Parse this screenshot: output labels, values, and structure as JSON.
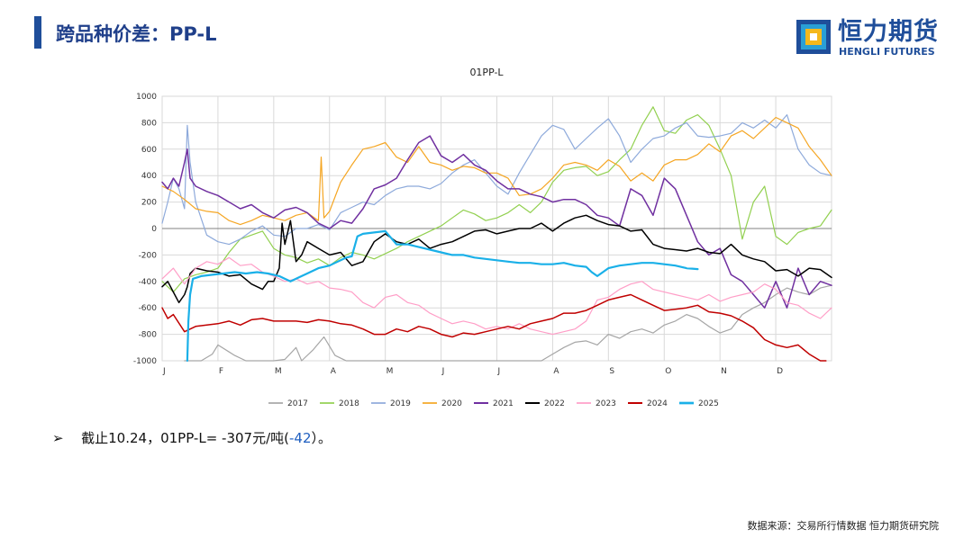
{
  "header": {
    "title": "跨品种价差：PP-L",
    "logo_cn": "恒力期货",
    "logo_en": "HENGLI FUTURES",
    "accent_color": "#1f4e9a"
  },
  "note": {
    "bullet": "➢",
    "prefix": "截止10.24，01PP-L= -307元/吨(",
    "change": "-42",
    "suffix": "）。"
  },
  "source": "数据来源：交易所行情数据  恒力期货研究院",
  "chart_data": {
    "type": "line",
    "title": "01PP-L",
    "xlabel": "",
    "ylabel": "",
    "ylim": [
      -1000,
      1000
    ],
    "yticks": [
      -1000,
      -800,
      -600,
      -400,
      -200,
      0,
      200,
      400,
      600,
      800,
      1000
    ],
    "xlim": [
      0,
      12
    ],
    "xticks": [
      {
        "label": "J",
        "x": 0
      },
      {
        "label": "F",
        "x": 1
      },
      {
        "label": "M",
        "x": 2
      },
      {
        "label": "A",
        "x": 3
      },
      {
        "label": "M",
        "x": 4
      },
      {
        "label": "J",
        "x": 5
      },
      {
        "label": "J",
        "x": 6
      },
      {
        "label": "A",
        "x": 7
      },
      {
        "label": "S",
        "x": 8
      },
      {
        "label": "O",
        "x": 9
      },
      {
        "label": "N",
        "x": 10
      },
      {
        "label": "D",
        "x": 11
      }
    ],
    "grid": true,
    "legend_position": "bottom",
    "series": [
      {
        "name": "2017",
        "color": "#a6a6a6",
        "width": 1.2,
        "x": [
          0.4,
          0.5,
          0.7,
          0.9,
          1.0,
          1.3,
          1.5,
          1.8,
          2.0,
          2.2,
          2.4,
          2.5,
          2.7,
          2.9,
          3.1,
          3.3,
          3.5,
          3.7,
          3.9,
          4.1,
          4.3,
          4.5,
          4.7,
          5.0,
          5.2,
          5.4,
          5.6,
          5.8,
          6.0,
          6.2,
          6.4,
          6.6,
          6.8,
          7.0,
          7.2,
          7.4,
          7.6,
          7.8,
          8.0,
          8.2,
          8.4,
          8.6,
          8.8,
          9.0,
          9.2,
          9.4,
          9.6,
          9.8,
          10.0,
          10.2,
          10.4,
          10.6,
          10.8,
          11.0,
          11.2,
          11.4,
          11.6,
          11.8,
          12.0
        ],
        "y": [
          -1000,
          -1000,
          -1000,
          -950,
          -880,
          -960,
          -1000,
          -1000,
          -1000,
          -990,
          -900,
          -1000,
          -920,
          -820,
          -960,
          -1000,
          -1000,
          -1000,
          -1000,
          -1000,
          -1000,
          -1000,
          -1000,
          -1000,
          -1000,
          -1000,
          -1000,
          -1000,
          -1000,
          -1000,
          -1000,
          -1000,
          -1000,
          -950,
          -900,
          -860,
          -850,
          -880,
          -800,
          -830,
          -780,
          -760,
          -790,
          -730,
          -700,
          -650,
          -680,
          -740,
          -790,
          -760,
          -650,
          -600,
          -560,
          -500,
          -450,
          -480,
          -500,
          -450,
          -430
        ]
      },
      {
        "name": "2018",
        "color": "#92d050",
        "width": 1.2,
        "x": [
          0,
          0.2,
          0.4,
          0.6,
          0.8,
          1.0,
          1.2,
          1.4,
          1.6,
          1.8,
          2.0,
          2.2,
          2.4,
          2.6,
          2.8,
          3.0,
          3.2,
          3.4,
          3.6,
          3.8,
          4.0,
          4.2,
          4.4,
          4.6,
          4.8,
          5.0,
          5.2,
          5.4,
          5.6,
          5.8,
          6.0,
          6.2,
          6.4,
          6.6,
          6.8,
          7.0,
          7.2,
          7.4,
          7.6,
          7.8,
          8.0,
          8.2,
          8.4,
          8.6,
          8.8,
          9.0,
          9.2,
          9.4,
          9.6,
          9.8,
          10.0,
          10.2,
          10.4,
          10.6,
          10.8,
          11.0,
          11.2,
          11.4,
          11.6,
          11.8,
          12.0
        ],
        "y": [
          -400,
          -480,
          -380,
          -350,
          -330,
          -300,
          -180,
          -80,
          -50,
          -20,
          -150,
          -200,
          -220,
          -260,
          -230,
          -280,
          -220,
          -180,
          -200,
          -230,
          -190,
          -150,
          -100,
          -60,
          -20,
          20,
          80,
          140,
          110,
          60,
          80,
          120,
          180,
          120,
          200,
          350,
          440,
          460,
          470,
          400,
          430,
          520,
          600,
          780,
          920,
          740,
          720,
          820,
          860,
          780,
          600,
          400,
          -80,
          200,
          320,
          -60,
          -120,
          -30,
          0,
          20,
          140
        ]
      },
      {
        "name": "2019",
        "color": "#8eaadb",
        "width": 1.2,
        "x": [
          0,
          0.1,
          0.2,
          0.3,
          0.4,
          0.45,
          0.5,
          0.6,
          0.8,
          1.0,
          1.2,
          1.4,
          1.6,
          1.8,
          2.0,
          2.2,
          2.4,
          2.6,
          2.8,
          3.0,
          3.2,
          3.4,
          3.6,
          3.8,
          4.0,
          4.2,
          4.4,
          4.6,
          4.8,
          5.0,
          5.2,
          5.4,
          5.6,
          5.8,
          6.0,
          6.2,
          6.4,
          6.6,
          6.8,
          7.0,
          7.2,
          7.4,
          7.6,
          7.8,
          8.0,
          8.2,
          8.4,
          8.6,
          8.8,
          9.0,
          9.2,
          9.4,
          9.6,
          9.8,
          10.0,
          10.2,
          10.4,
          10.6,
          10.8,
          11.0,
          11.2,
          11.4,
          11.6,
          11.8,
          12.0
        ],
        "y": [
          40,
          200,
          380,
          300,
          150,
          780,
          500,
          200,
          -50,
          -100,
          -120,
          -80,
          -20,
          20,
          -50,
          -60,
          0,
          0,
          30,
          -10,
          120,
          160,
          200,
          180,
          250,
          300,
          320,
          320,
          300,
          340,
          420,
          480,
          520,
          420,
          320,
          260,
          420,
          560,
          700,
          780,
          750,
          600,
          680,
          760,
          830,
          700,
          500,
          600,
          680,
          700,
          760,
          800,
          700,
          690,
          700,
          720,
          800,
          760,
          820,
          760,
          860,
          600,
          480,
          420,
          400
        ]
      },
      {
        "name": "2020",
        "color": "#f5a623",
        "width": 1.2,
        "x": [
          0,
          0.2,
          0.4,
          0.6,
          0.8,
          1.0,
          1.2,
          1.4,
          1.6,
          1.8,
          2.0,
          2.2,
          2.4,
          2.6,
          2.8,
          2.85,
          2.9,
          3.0,
          3.2,
          3.4,
          3.6,
          3.8,
          4.0,
          4.2,
          4.4,
          4.6,
          4.8,
          5.0,
          5.2,
          5.4,
          5.6,
          5.8,
          6.0,
          6.2,
          6.4,
          6.6,
          6.8,
          7.0,
          7.2,
          7.4,
          7.6,
          7.8,
          8.0,
          8.2,
          8.4,
          8.6,
          8.8,
          9.0,
          9.2,
          9.4,
          9.6,
          9.8,
          10.0,
          10.2,
          10.4,
          10.6,
          10.8,
          11.0,
          11.2,
          11.4,
          11.6,
          11.8,
          12.0
        ],
        "y": [
          320,
          280,
          220,
          150,
          130,
          120,
          60,
          30,
          60,
          100,
          80,
          60,
          100,
          120,
          60,
          540,
          80,
          130,
          350,
          480,
          600,
          620,
          650,
          540,
          500,
          620,
          500,
          480,
          440,
          470,
          460,
          420,
          420,
          380,
          250,
          260,
          300,
          380,
          480,
          500,
          480,
          440,
          520,
          470,
          360,
          420,
          360,
          480,
          520,
          520,
          560,
          640,
          580,
          700,
          740,
          680,
          760,
          840,
          800,
          760,
          620,
          520,
          400
        ]
      },
      {
        "name": "2021",
        "color": "#7030a0",
        "width": 1.5,
        "x": [
          0,
          0.1,
          0.2,
          0.3,
          0.4,
          0.45,
          0.5,
          0.6,
          0.8,
          1.0,
          1.2,
          1.4,
          1.6,
          1.8,
          2.0,
          2.2,
          2.4,
          2.6,
          2.8,
          3.0,
          3.2,
          3.4,
          3.6,
          3.8,
          4.0,
          4.2,
          4.4,
          4.6,
          4.8,
          5.0,
          5.2,
          5.4,
          5.6,
          5.8,
          6.0,
          6.2,
          6.4,
          6.6,
          6.8,
          7.0,
          7.2,
          7.4,
          7.6,
          7.8,
          8.0,
          8.2,
          8.4,
          8.6,
          8.8,
          9.0,
          9.2,
          9.4,
          9.6,
          9.8,
          10.0,
          10.2,
          10.4,
          10.6,
          10.8,
          11.0,
          11.2,
          11.4,
          11.6,
          11.8,
          12.0
        ],
        "y": [
          350,
          300,
          380,
          320,
          500,
          600,
          380,
          320,
          280,
          250,
          200,
          150,
          180,
          120,
          80,
          140,
          160,
          120,
          40,
          0,
          60,
          40,
          150,
          300,
          330,
          380,
          520,
          650,
          700,
          550,
          500,
          560,
          480,
          440,
          360,
          300,
          300,
          260,
          240,
          200,
          220,
          220,
          180,
          100,
          80,
          20,
          300,
          250,
          100,
          380,
          300,
          100,
          -100,
          -200,
          -150,
          -350,
          -400,
          -500,
          -600,
          -400,
          -600,
          -300,
          -500,
          -400,
          -430
        ]
      },
      {
        "name": "2022",
        "color": "#000000",
        "width": 1.5,
        "x": [
          0,
          0.1,
          0.2,
          0.3,
          0.4,
          0.45,
          0.5,
          0.6,
          0.8,
          1.0,
          1.2,
          1.4,
          1.6,
          1.8,
          1.9,
          2.0,
          2.1,
          2.15,
          2.2,
          2.3,
          2.4,
          2.5,
          2.6,
          2.8,
          3.0,
          3.2,
          3.4,
          3.6,
          3.8,
          4.0,
          4.2,
          4.4,
          4.6,
          4.8,
          5.0,
          5.2,
          5.4,
          5.6,
          5.8,
          6.0,
          6.2,
          6.4,
          6.6,
          6.8,
          7.0,
          7.2,
          7.4,
          7.6,
          7.8,
          8.0,
          8.2,
          8.4,
          8.6,
          8.8,
          9.0,
          9.2,
          9.4,
          9.6,
          9.8,
          10.0,
          10.2,
          10.4,
          10.6,
          10.8,
          11.0,
          11.2,
          11.4,
          11.6,
          11.8,
          12.0
        ],
        "y": [
          -440,
          -400,
          -480,
          -560,
          -500,
          -440,
          -340,
          -300,
          -320,
          -330,
          -360,
          -350,
          -420,
          -460,
          -400,
          -400,
          -300,
          40,
          -120,
          60,
          -250,
          -200,
          -100,
          -150,
          -200,
          -180,
          -280,
          -250,
          -100,
          -40,
          -100,
          -120,
          -80,
          -150,
          -120,
          -100,
          -60,
          -20,
          -10,
          -40,
          -20,
          0,
          0,
          40,
          -20,
          40,
          80,
          100,
          60,
          30,
          20,
          -20,
          -10,
          -120,
          -150,
          -160,
          -170,
          -150,
          -180,
          -190,
          -120,
          -200,
          -230,
          -250,
          -320,
          -310,
          -360,
          -300,
          -310,
          -370
        ]
      },
      {
        "name": "2023",
        "color": "#ff9ec7",
        "width": 1.2,
        "x": [
          0,
          0.2,
          0.4,
          0.6,
          0.8,
          1.0,
          1.2,
          1.4,
          1.6,
          1.8,
          2.0,
          2.2,
          2.4,
          2.6,
          2.8,
          3.0,
          3.2,
          3.4,
          3.6,
          3.8,
          4.0,
          4.2,
          4.4,
          4.6,
          4.8,
          5.0,
          5.2,
          5.4,
          5.6,
          5.8,
          6.0,
          6.2,
          6.4,
          6.6,
          6.8,
          7.0,
          7.2,
          7.4,
          7.6,
          7.8,
          8.0,
          8.2,
          8.4,
          8.6,
          8.8,
          9.0,
          9.2,
          9.4,
          9.6,
          9.8,
          10.0,
          10.2,
          10.4,
          10.6,
          10.8,
          11.0,
          11.2,
          11.4,
          11.6,
          11.8,
          12.0
        ],
        "y": [
          -380,
          -300,
          -420,
          -300,
          -250,
          -270,
          -220,
          -280,
          -270,
          -330,
          -360,
          -400,
          -380,
          -420,
          -400,
          -450,
          -460,
          -480,
          -560,
          -600,
          -520,
          -500,
          -560,
          -580,
          -640,
          -680,
          -720,
          -700,
          -720,
          -760,
          -740,
          -760,
          -720,
          -760,
          -780,
          -800,
          -780,
          -760,
          -700,
          -540,
          -520,
          -460,
          -420,
          -400,
          -460,
          -480,
          -500,
          -520,
          -540,
          -500,
          -550,
          -520,
          -500,
          -480,
          -420,
          -460,
          -560,
          -580,
          -640,
          -680,
          -600
        ]
      },
      {
        "name": "2024",
        "color": "#c00000",
        "width": 1.5,
        "x": [
          0,
          0.1,
          0.2,
          0.4,
          0.6,
          0.8,
          1.0,
          1.2,
          1.4,
          1.6,
          1.8,
          2.0,
          2.2,
          2.4,
          2.6,
          2.8,
          3.0,
          3.2,
          3.4,
          3.6,
          3.8,
          4.0,
          4.2,
          4.4,
          4.6,
          4.8,
          5.0,
          5.2,
          5.4,
          5.6,
          5.8,
          6.0,
          6.2,
          6.4,
          6.6,
          6.8,
          7.0,
          7.2,
          7.4,
          7.6,
          7.8,
          8.0,
          8.2,
          8.4,
          8.6,
          8.8,
          9.0,
          9.2,
          9.4,
          9.6,
          9.8,
          10.0,
          10.2,
          10.4,
          10.6,
          10.8,
          11.0,
          11.2,
          11.4,
          11.6,
          11.8,
          11.9
        ],
        "y": [
          -600,
          -680,
          -650,
          -780,
          -740,
          -730,
          -720,
          -700,
          -730,
          -690,
          -680,
          -700,
          -700,
          -700,
          -710,
          -690,
          -700,
          -720,
          -730,
          -760,
          -800,
          -800,
          -760,
          -780,
          -740,
          -760,
          -800,
          -820,
          -790,
          -800,
          -780,
          -760,
          -740,
          -760,
          -720,
          -700,
          -680,
          -640,
          -640,
          -620,
          -580,
          -540,
          -520,
          -500,
          -540,
          -580,
          -620,
          -610,
          -600,
          -580,
          -630,
          -640,
          -660,
          -700,
          -750,
          -840,
          -880,
          -900,
          -880,
          -950,
          -1000,
          -1000
        ]
      },
      {
        "name": "2025",
        "color": "#1ab0e8",
        "width": 2.2,
        "x": [
          0.45,
          0.47,
          0.5,
          0.55,
          0.7,
          0.9,
          1.1,
          1.3,
          1.5,
          1.7,
          1.9,
          2.1,
          2.2,
          2.3,
          2.5,
          2.6,
          2.8,
          3.0,
          3.1,
          3.2,
          3.3,
          3.4,
          3.5,
          3.6,
          3.8,
          4.0,
          4.2,
          4.4,
          4.6,
          4.8,
          5.0,
          5.2,
          5.4,
          5.6,
          5.8,
          6.0,
          6.2,
          6.4,
          6.6,
          6.8,
          7.0,
          7.2,
          7.4,
          7.6,
          7.7,
          7.8,
          8.0,
          8.2,
          8.4,
          8.6,
          8.8,
          9.0,
          9.2,
          9.4,
          9.6
        ],
        "y": [
          -1000,
          -700,
          -500,
          -380,
          -360,
          -350,
          -340,
          -330,
          -340,
          -330,
          -340,
          -360,
          -380,
          -400,
          -360,
          -340,
          -300,
          -280,
          -260,
          -240,
          -220,
          -210,
          -60,
          -40,
          -30,
          -20,
          -120,
          -120,
          -140,
          -160,
          -180,
          -200,
          -200,
          -220,
          -230,
          -240,
          -250,
          -260,
          -260,
          -270,
          -270,
          -260,
          -280,
          -290,
          -330,
          -360,
          -300,
          -280,
          -270,
          -260,
          -260,
          -270,
          -280,
          -300,
          -307
        ]
      }
    ]
  }
}
